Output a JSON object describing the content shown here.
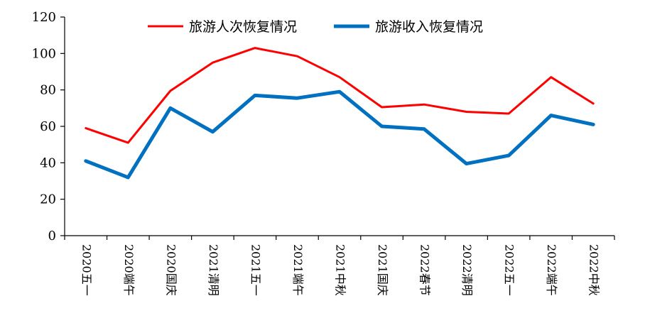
{
  "chart_data": {
    "type": "line",
    "title": "",
    "xlabel": "",
    "ylabel": "",
    "categories": [
      "2020五一",
      "2020端午",
      "2020国庆",
      "2021清明",
      "2021五一",
      "2021端午",
      "2021中秋",
      "2021国庆",
      "2022春节",
      "2022清明",
      "2022五一",
      "2022端午",
      "2022中秋"
    ],
    "series": [
      {
        "name": "旅游人次恢复情况",
        "color": "#ff0000",
        "values": [
          59,
          51,
          79.5,
          95,
          103,
          98.5,
          87,
          70.5,
          72,
          68,
          67,
          87,
          72.5
        ]
      },
      {
        "name": "旅游收入恢复情况",
        "color": "#0070c0",
        "values": [
          41,
          32,
          70,
          57,
          77,
          75.5,
          79,
          60,
          58.5,
          39.5,
          44,
          66,
          61
        ]
      }
    ],
    "ylim": [
      0,
      120
    ],
    "yticks": [
      "0",
      "20",
      "40",
      "60",
      "80",
      "100",
      "120"
    ],
    "grid": false,
    "legend": "top"
  }
}
